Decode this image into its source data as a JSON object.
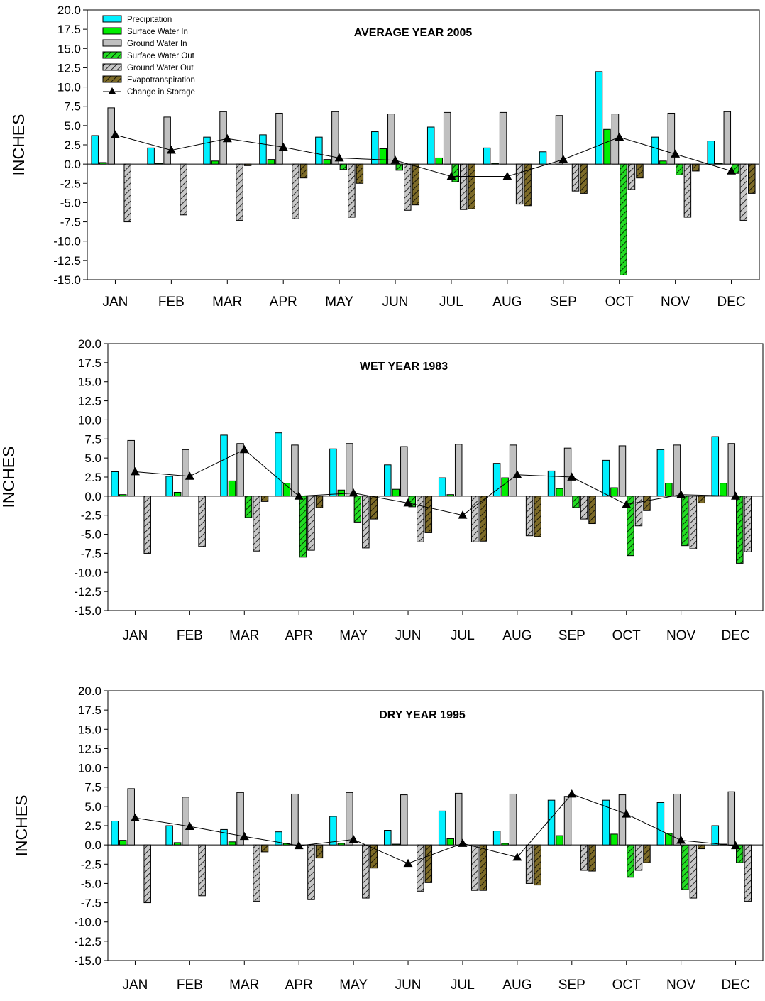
{
  "chart_data": [
    {
      "type": "bar",
      "title": "AVERAGE YEAR 2005",
      "ylabel": "INCHES",
      "xlabel": "",
      "ylim": [
        -15.0,
        20.0
      ],
      "yticks": [
        "20.0",
        "17.5",
        "15.0",
        "12.5",
        "10.0",
        "7.5",
        "5.0",
        "2.5",
        "0.0",
        "-2.5",
        "-5.0",
        "-7.5",
        "-10.0",
        "-12.5",
        "-15.0"
      ],
      "categories": [
        "JAN",
        "FEB",
        "MAR",
        "APR",
        "MAY",
        "JUN",
        "JUL",
        "AUG",
        "SEP",
        "OCT",
        "NOV",
        "DEC"
      ],
      "legend": true,
      "series": [
        {
          "name": "Precipitation",
          "values": [
            3.7,
            2.1,
            3.5,
            3.8,
            3.5,
            4.2,
            4.8,
            2.1,
            1.6,
            12.0,
            3.5,
            3.0
          ]
        },
        {
          "name": "Surface Water In",
          "values": [
            0.2,
            0.1,
            0.4,
            0.6,
            0.6,
            2.0,
            0.8,
            0.1,
            0.0,
            4.5,
            0.4,
            0.1
          ]
        },
        {
          "name": "Ground Water In",
          "values": [
            7.3,
            6.1,
            6.8,
            6.6,
            6.8,
            6.5,
            6.7,
            6.7,
            6.3,
            6.5,
            6.6,
            6.8
          ]
        },
        {
          "name": "Surface Water Out",
          "values": [
            0.0,
            0.0,
            0.0,
            0.0,
            -0.7,
            -0.8,
            -2.3,
            0.0,
            0.0,
            -14.4,
            -1.4,
            -1.2
          ]
        },
        {
          "name": "Ground Water Out",
          "values": [
            -7.5,
            -6.6,
            -7.3,
            -7.1,
            -6.9,
            -6.0,
            -5.9,
            -5.2,
            -3.5,
            -3.3,
            -6.9,
            -7.3
          ]
        },
        {
          "name": "Evapotranspiration",
          "values": [
            0.0,
            0.0,
            -0.2,
            -1.8,
            -2.5,
            -5.3,
            -5.8,
            -5.4,
            -3.8,
            -1.8,
            -0.9,
            -3.8
          ]
        },
        {
          "name": "Change in Storage",
          "type": "line",
          "values": [
            3.8,
            1.8,
            3.3,
            2.2,
            0.8,
            0.5,
            -1.6,
            -1.6,
            0.6,
            3.5,
            1.3,
            -0.9
          ]
        }
      ]
    },
    {
      "type": "bar",
      "title": "WET YEAR 1983",
      "ylabel": "INCHES",
      "xlabel": "",
      "ylim": [
        -15.0,
        20.0
      ],
      "yticks": [
        "20.0",
        "17.5",
        "15.0",
        "12.5",
        "10.0",
        "7.5",
        "5.0",
        "2.5",
        "0.0",
        "-2.5",
        "-5.0",
        "-7.5",
        "-10.0",
        "-12.5",
        "-15.0"
      ],
      "categories": [
        "JAN",
        "FEB",
        "MAR",
        "APR",
        "MAY",
        "JUN",
        "JUL",
        "AUG",
        "SEP",
        "OCT",
        "NOV",
        "DEC"
      ],
      "legend": false,
      "series": [
        {
          "name": "Precipitation",
          "values": [
            3.2,
            2.6,
            8.0,
            8.3,
            6.2,
            4.1,
            2.4,
            4.3,
            3.3,
            4.7,
            6.1,
            7.8
          ]
        },
        {
          "name": "Surface Water In",
          "values": [
            0.2,
            0.5,
            2.0,
            1.7,
            0.8,
            0.9,
            0.2,
            2.4,
            1.0,
            1.1,
            1.7,
            1.7
          ]
        },
        {
          "name": "Ground Water In",
          "values": [
            7.3,
            6.1,
            6.9,
            6.7,
            6.9,
            6.5,
            6.8,
            6.7,
            6.3,
            6.6,
            6.7,
            6.9
          ]
        },
        {
          "name": "Surface Water Out",
          "values": [
            0.0,
            0.0,
            -2.8,
            -8.0,
            -3.4,
            -1.4,
            0.0,
            0.0,
            -1.5,
            -7.8,
            -6.5,
            -8.8
          ]
        },
        {
          "name": "Ground Water Out",
          "values": [
            -7.5,
            -6.6,
            -7.2,
            -7.1,
            -6.8,
            -6.0,
            -6.0,
            -5.2,
            -3.0,
            -3.9,
            -6.9,
            -7.3
          ]
        },
        {
          "name": "Evapotranspiration",
          "values": [
            0.0,
            0.0,
            -0.7,
            -1.5,
            -3.0,
            -4.8,
            -5.9,
            -5.3,
            -3.6,
            -1.9,
            -0.9,
            0.0
          ]
        },
        {
          "name": "Change in Storage",
          "type": "line",
          "values": [
            3.2,
            2.6,
            6.1,
            0.0,
            0.4,
            -0.9,
            -2.5,
            2.8,
            2.5,
            -1.1,
            0.2,
            0.0
          ]
        }
      ]
    },
    {
      "type": "bar",
      "title": "DRY YEAR 1995",
      "ylabel": "INCHES",
      "xlabel": "",
      "ylim": [
        -15.0,
        20.0
      ],
      "yticks": [
        "20.0",
        "17.5",
        "15.0",
        "12.5",
        "10.0",
        "7.5",
        "5.0",
        "2.5",
        "0.0",
        "-2.5",
        "-5.0",
        "-7.5",
        "-10.0",
        "-12.5",
        "-15.0"
      ],
      "categories": [
        "JAN",
        "FEB",
        "MAR",
        "APR",
        "MAY",
        "JUN",
        "JUL",
        "AUG",
        "SEP",
        "OCT",
        "NOV",
        "DEC"
      ],
      "legend": false,
      "series": [
        {
          "name": "Precipitation",
          "values": [
            3.1,
            2.5,
            2.0,
            1.7,
            3.7,
            1.9,
            4.4,
            1.8,
            5.8,
            5.8,
            5.5,
            2.5
          ]
        },
        {
          "name": "Surface Water In",
          "values": [
            0.6,
            0.3,
            0.4,
            0.2,
            0.2,
            0.1,
            0.8,
            0.2,
            1.2,
            1.4,
            1.5,
            0.1
          ]
        },
        {
          "name": "Ground Water In",
          "values": [
            7.3,
            6.2,
            6.8,
            6.6,
            6.8,
            6.5,
            6.7,
            6.6,
            6.3,
            6.5,
            6.6,
            6.9
          ]
        },
        {
          "name": "Surface Water Out",
          "values": [
            0.0,
            0.0,
            0.0,
            0.0,
            0.0,
            0.0,
            0.0,
            0.0,
            0.0,
            -4.2,
            -5.8,
            -2.3
          ]
        },
        {
          "name": "Ground Water Out",
          "values": [
            -7.5,
            -6.6,
            -7.3,
            -7.1,
            -6.9,
            -6.0,
            -5.9,
            -5.0,
            -3.3,
            -3.3,
            -6.9,
            -7.3
          ]
        },
        {
          "name": "Evapotranspiration",
          "values": [
            0.0,
            0.0,
            -0.9,
            -1.7,
            -3.0,
            -4.9,
            -5.9,
            -5.2,
            -3.4,
            -2.3,
            -0.5,
            0.0
          ]
        },
        {
          "name": "Change in Storage",
          "type": "line",
          "values": [
            3.5,
            2.4,
            1.1,
            -0.1,
            0.7,
            -2.4,
            0.2,
            -1.6,
            6.6,
            4.0,
            0.6,
            -0.1
          ]
        }
      ]
    }
  ],
  "colors": {
    "precipitation": "#00f0ff",
    "surface_water_in": "#00ee00",
    "ground_water_in": "#c0c0c0",
    "surface_water_out": "#22dd22",
    "ground_water_out": "#c8c8c8",
    "evapotranspiration": "#7d6b28",
    "change_in_storage": "#000000"
  }
}
